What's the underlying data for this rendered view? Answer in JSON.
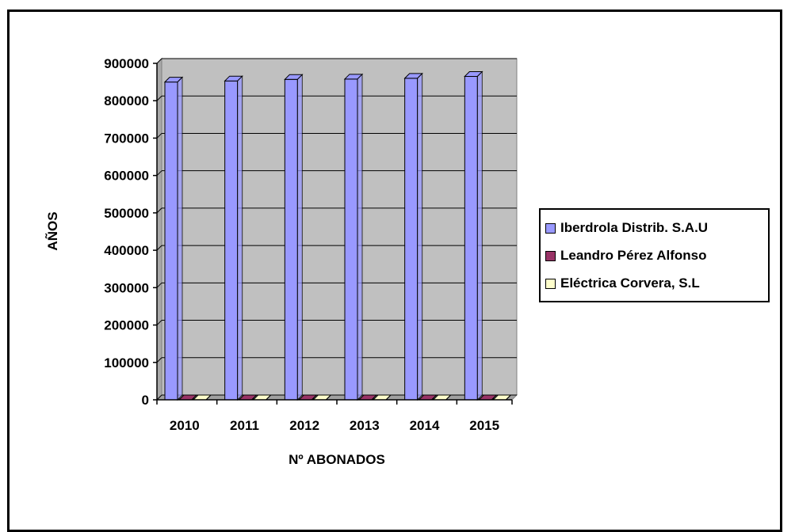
{
  "chart_data": {
    "type": "bar",
    "categories": [
      "2010",
      "2011",
      "2012",
      "2013",
      "2014",
      "2015"
    ],
    "series": [
      {
        "name": "Iberdrola Distrib. S.A.U",
        "values": [
          850000,
          853000,
          857000,
          858000,
          860000,
          865000
        ],
        "color": "#9999ff"
      },
      {
        "name": "Leandro Pérez Alfonso",
        "values": [
          0,
          0,
          0,
          0,
          0,
          0
        ],
        "color": "#993366"
      },
      {
        "name": "Eléctrica Corvera, S.L",
        "values": [
          0,
          0,
          0,
          0,
          0,
          0
        ],
        "color": "#ffffcc"
      }
    ],
    "xlabel": "Nº ABONADOS",
    "ylabel": "AÑOS",
    "ylim": [
      0,
      900000
    ],
    "yticks": [
      "0",
      "100000",
      "200000",
      "300000",
      "400000",
      "500000",
      "600000",
      "700000",
      "800000",
      "900000"
    ],
    "grid": true,
    "legend_position": "right",
    "plot_background": "#c0c0c0"
  }
}
